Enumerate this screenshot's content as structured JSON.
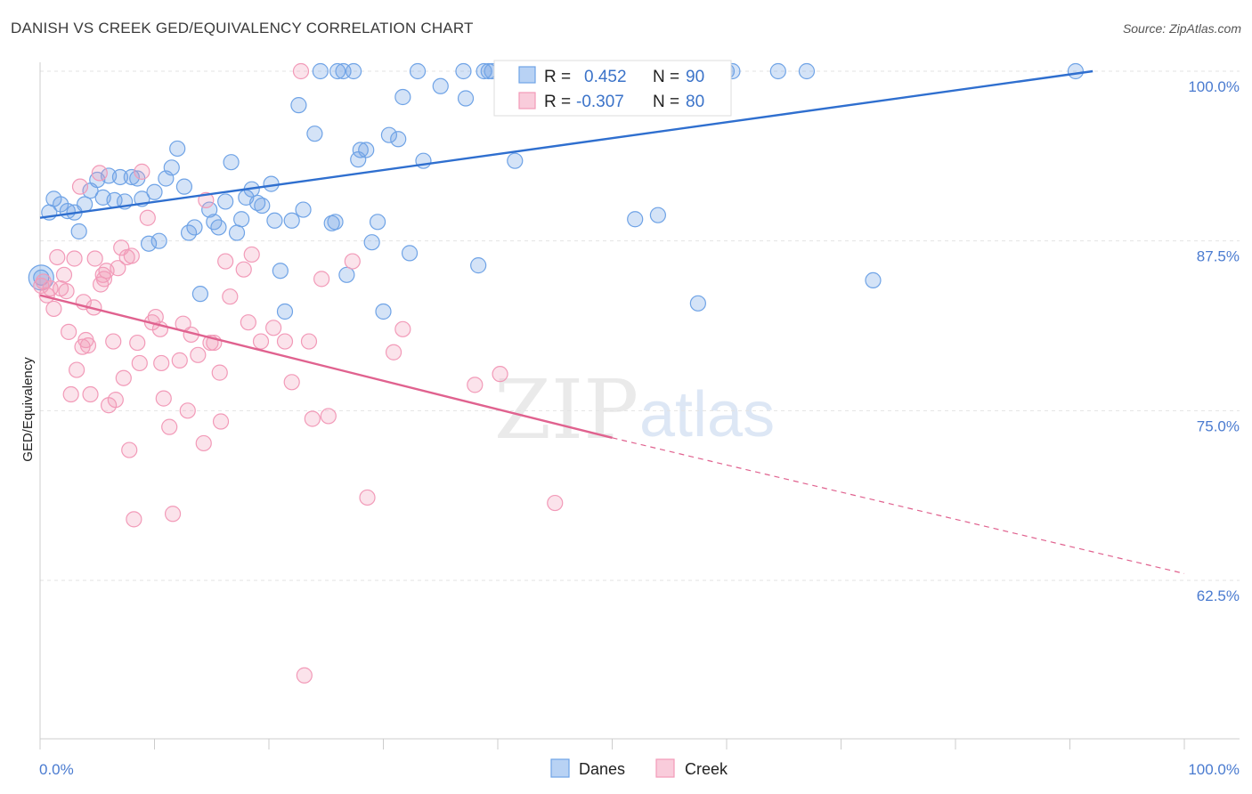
{
  "title": "DANISH VS CREEK GED/EQUIVALENCY CORRELATION CHART",
  "source": "Source: ZipAtlas.com",
  "colors": {
    "danes": "#6fa3e6",
    "danes_line": "#2f6fcf",
    "creek": "#f29ab8",
    "creek_line": "#e0628f",
    "axis_text": "#4a7bd0"
  },
  "legend": {
    "danes": {
      "r_label": "R =",
      "r_value": "0.452",
      "n_label": "N =",
      "n_value": "90"
    },
    "creek": {
      "r_label": "R =",
      "r_value": "-0.307",
      "n_label": "N =",
      "n_value": "80"
    }
  },
  "watermark": {
    "zip": "ZIP",
    "atlas": "atlas"
  },
  "chart_data": {
    "type": "scatter",
    "title": "DANISH VS CREEK GED/EQUIVALENCY CORRELATION CHART",
    "ylabel": "GED/Equivalency",
    "xlabel": "",
    "x_tick_labels": [
      "0.0%",
      "100.0%"
    ],
    "y_tick_labels": [
      "100.0%",
      "87.5%",
      "75.0%",
      "62.5%"
    ],
    "y_ticks": [
      100.0,
      87.5,
      75.0,
      62.5
    ],
    "xlim": [
      0,
      100
    ],
    "ylim": [
      50.0,
      102.0
    ],
    "grid": true,
    "legend_position": "top-center",
    "series": [
      {
        "name": "Danes",
        "color": "#6fa3e6",
        "trend": {
          "x": [
            0,
            92
          ],
          "y": [
            89.2,
            100.0
          ],
          "style": "solid"
        },
        "points": [
          [
            0.1,
            84.8
          ],
          [
            0.8,
            89.6
          ],
          [
            1.2,
            90.6
          ],
          [
            1.8,
            90.2
          ],
          [
            2.4,
            89.7
          ],
          [
            3.0,
            89.6
          ],
          [
            3.4,
            88.2
          ],
          [
            3.9,
            90.2
          ],
          [
            4.4,
            91.2
          ],
          [
            5.0,
            92.0
          ],
          [
            5.5,
            90.7
          ],
          [
            6.0,
            92.3
          ],
          [
            6.5,
            90.5
          ],
          [
            7.0,
            92.2
          ],
          [
            7.4,
            90.4
          ],
          [
            8.0,
            92.2
          ],
          [
            8.5,
            92.1
          ],
          [
            8.9,
            90.6
          ],
          [
            9.5,
            87.3
          ],
          [
            10.0,
            91.1
          ],
          [
            10.4,
            87.5
          ],
          [
            11.0,
            92.1
          ],
          [
            11.5,
            92.9
          ],
          [
            12.0,
            94.3
          ],
          [
            12.6,
            91.5
          ],
          [
            13.0,
            88.1
          ],
          [
            13.5,
            88.5
          ],
          [
            14.0,
            83.6
          ],
          [
            14.8,
            89.8
          ],
          [
            15.2,
            88.9
          ],
          [
            15.6,
            88.5
          ],
          [
            16.2,
            90.4
          ],
          [
            16.7,
            93.3
          ],
          [
            17.2,
            88.1
          ],
          [
            17.6,
            89.1
          ],
          [
            18.0,
            90.7
          ],
          [
            18.5,
            91.3
          ],
          [
            19.0,
            90.3
          ],
          [
            19.4,
            90.1
          ],
          [
            20.2,
            91.7
          ],
          [
            20.5,
            89.0
          ],
          [
            21.0,
            85.3
          ],
          [
            21.4,
            82.3
          ],
          [
            22.0,
            89.0
          ],
          [
            22.6,
            97.5
          ],
          [
            23.0,
            89.8
          ],
          [
            24.0,
            95.4
          ],
          [
            24.5,
            100.0
          ],
          [
            25.5,
            88.8
          ],
          [
            25.8,
            88.9
          ],
          [
            26.0,
            100.0
          ],
          [
            26.5,
            100.0
          ],
          [
            26.8,
            85.0
          ],
          [
            27.4,
            100.0
          ],
          [
            27.8,
            93.5
          ],
          [
            28.0,
            94.2
          ],
          [
            28.5,
            94.2
          ],
          [
            29.0,
            87.4
          ],
          [
            29.5,
            88.9
          ],
          [
            30.0,
            82.3
          ],
          [
            30.5,
            95.3
          ],
          [
            31.3,
            95.0
          ],
          [
            31.7,
            98.1
          ],
          [
            32.3,
            86.6
          ],
          [
            33.0,
            100.0
          ],
          [
            33.5,
            93.4
          ],
          [
            35.0,
            98.9
          ],
          [
            37.0,
            100.0
          ],
          [
            37.2,
            98.0
          ],
          [
            38.3,
            85.7
          ],
          [
            38.8,
            100.0
          ],
          [
            39.2,
            100.0
          ],
          [
            39.5,
            100.0
          ],
          [
            41.5,
            93.4
          ],
          [
            42.0,
            100.0
          ],
          [
            44.0,
            100.0
          ],
          [
            45.0,
            100.0
          ],
          [
            45.3,
            100.0
          ],
          [
            48.0,
            100.0
          ],
          [
            52.0,
            89.1
          ],
          [
            54.0,
            89.4
          ],
          [
            60.0,
            100.0
          ],
          [
            55.0,
            100.0
          ],
          [
            57.0,
            100.0
          ],
          [
            60.5,
            100.0
          ],
          [
            64.5,
            100.0
          ],
          [
            67.0,
            100.0
          ],
          [
            72.8,
            84.6
          ],
          [
            57.5,
            82.9
          ],
          [
            90.5,
            100.0
          ]
        ]
      },
      {
        "name": "Creek",
        "color": "#f29ab8",
        "trend": {
          "x": [
            0,
            50
          ],
          "y": [
            83.5,
            73.0
          ],
          "style": "solid",
          "dashed_extension_to": [
            100,
            63.0
          ]
        },
        "points": [
          [
            0.3,
            84.5
          ],
          [
            0.6,
            83.5
          ],
          [
            0.9,
            84.0
          ],
          [
            1.2,
            82.5
          ],
          [
            1.5,
            86.3
          ],
          [
            1.8,
            84.0
          ],
          [
            2.1,
            85.0
          ],
          [
            2.3,
            83.8
          ],
          [
            2.5,
            80.8
          ],
          [
            2.7,
            76.2
          ],
          [
            3.0,
            86.2
          ],
          [
            3.2,
            78.0
          ],
          [
            3.5,
            91.5
          ],
          [
            3.7,
            79.7
          ],
          [
            3.8,
            83.0
          ],
          [
            4.0,
            80.2
          ],
          [
            4.2,
            79.8
          ],
          [
            4.4,
            76.2
          ],
          [
            4.7,
            82.6
          ],
          [
            4.8,
            86.2
          ],
          [
            5.2,
            92.5
          ],
          [
            5.3,
            84.3
          ],
          [
            5.5,
            85.0
          ],
          [
            5.8,
            85.3
          ],
          [
            6.0,
            75.4
          ],
          [
            6.4,
            80.1
          ],
          [
            6.6,
            75.8
          ],
          [
            6.8,
            85.5
          ],
          [
            7.1,
            87.0
          ],
          [
            7.3,
            77.4
          ],
          [
            7.6,
            86.3
          ],
          [
            7.8,
            72.1
          ],
          [
            8.0,
            86.4
          ],
          [
            8.2,
            67.0
          ],
          [
            8.5,
            80.0
          ],
          [
            8.7,
            78.5
          ],
          [
            8.9,
            92.6
          ],
          [
            9.4,
            89.2
          ],
          [
            9.8,
            81.5
          ],
          [
            10.1,
            81.9
          ],
          [
            10.5,
            81.0
          ],
          [
            10.6,
            78.5
          ],
          [
            10.8,
            75.9
          ],
          [
            11.3,
            73.8
          ],
          [
            11.6,
            67.4
          ],
          [
            12.5,
            81.4
          ],
          [
            12.9,
            75.0
          ],
          [
            13.2,
            80.6
          ],
          [
            13.8,
            79.1
          ],
          [
            14.3,
            72.6
          ],
          [
            14.5,
            90.5
          ],
          [
            14.9,
            80.0
          ],
          [
            15.2,
            80.0
          ],
          [
            15.7,
            77.8
          ],
          [
            15.8,
            74.2
          ],
          [
            16.2,
            86.0
          ],
          [
            16.6,
            83.4
          ],
          [
            17.8,
            85.4
          ],
          [
            18.2,
            81.5
          ],
          [
            18.5,
            86.5
          ],
          [
            19.3,
            80.1
          ],
          [
            20.4,
            81.1
          ],
          [
            21.4,
            80.1
          ],
          [
            22.0,
            77.1
          ],
          [
            22.8,
            100.0
          ],
          [
            23.1,
            55.5
          ],
          [
            23.5,
            80.1
          ],
          [
            23.8,
            74.4
          ],
          [
            24.6,
            84.7
          ],
          [
            25.2,
            74.6
          ],
          [
            27.3,
            86.0
          ],
          [
            28.6,
            68.6
          ],
          [
            30.9,
            79.3
          ],
          [
            31.7,
            81.0
          ],
          [
            38.0,
            76.9
          ],
          [
            40.2,
            77.7
          ],
          [
            45.0,
            68.2
          ],
          [
            0.1,
            84.2
          ],
          [
            5.6,
            84.7
          ],
          [
            12.2,
            78.7
          ]
        ]
      }
    ]
  }
}
